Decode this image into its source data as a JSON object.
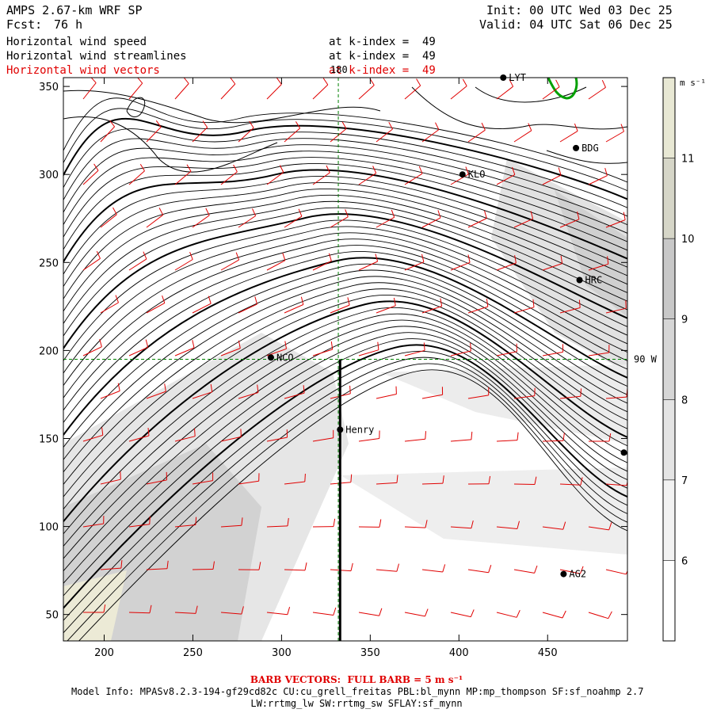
{
  "header": {
    "model": "AMPS 2.67-km WRF SP",
    "forecast_label": "Fcst:",
    "forecast_hours": "76 h",
    "init": "Init: 00 UTC Wed 03 Dec 25",
    "valid": "Valid: 04 UTC Sat 06 Dec 25"
  },
  "fields": [
    {
      "name": "Horizontal wind speed",
      "level": "at k-index =  49",
      "color": "#000000"
    },
    {
      "name": "Horizontal wind streamlines",
      "level": "at k-index =  49",
      "color": "#000000"
    },
    {
      "name": "Horizontal wind vectors",
      "level": "at k-index =  49",
      "color": "#e00000"
    }
  ],
  "chart_data": {
    "type": "map",
    "x_ticks": [
      "200",
      "250",
      "300",
      "350",
      "400",
      "450"
    ],
    "y_ticks": [
      "50",
      "100",
      "150",
      "200",
      "250",
      "300",
      "350"
    ],
    "xlim": [
      177,
      495
    ],
    "ylim": [
      35,
      355
    ],
    "colorbar": {
      "unit": "m s⁻¹",
      "ticks": [
        "6",
        "7",
        "8",
        "9",
        "10",
        "11"
      ],
      "range": [
        5,
        12
      ],
      "colors": [
        "#ffffff",
        "#f2f2f2",
        "#e4e4e4",
        "#d6d6d6",
        "#c8c8c8",
        "#d6d6c8",
        "#e8e8d4"
      ]
    },
    "grid_lines": [
      {
        "label": "180",
        "axis": "x",
        "value": 332
      },
      {
        "label": "90 W",
        "axis": "y",
        "value": 195
      }
    ],
    "stations": [
      {
        "label": "LYT",
        "x": 425,
        "y": 355
      },
      {
        "label": "BDG",
        "x": 466,
        "y": 315
      },
      {
        "label": "KLO",
        "x": 402,
        "y": 300
      },
      {
        "label": "HRC",
        "x": 468,
        "y": 240
      },
      {
        "label": "NCO",
        "x": 294,
        "y": 196
      },
      {
        "label": "Henry",
        "x": 333,
        "y": 155
      },
      {
        "label": "",
        "x": 493,
        "y": 142
      },
      {
        "label": "AG2",
        "x": 459,
        "y": 73
      }
    ],
    "cross_section": {
      "x": 333,
      "y_from": 35,
      "y_to": 195
    },
    "series_colors": {
      "contours": "#000000",
      "vectors": "#e00000",
      "coast": "#00a000"
    }
  },
  "footer": {
    "barb_note": "BARB VECTORS:  FULL BARB = 5 m s⁻¹",
    "model_info": "Model Info: MPASv8.2.3-194-gf29cd82c CU:cu_grell_freitas PBL:bl_mynn MP:mp_thompson SF:sf_noahmp 2.7",
    "model_info2": "LW:rrtmg_lw SW:rrtmg_sw SFLAY:sf_mynn"
  }
}
